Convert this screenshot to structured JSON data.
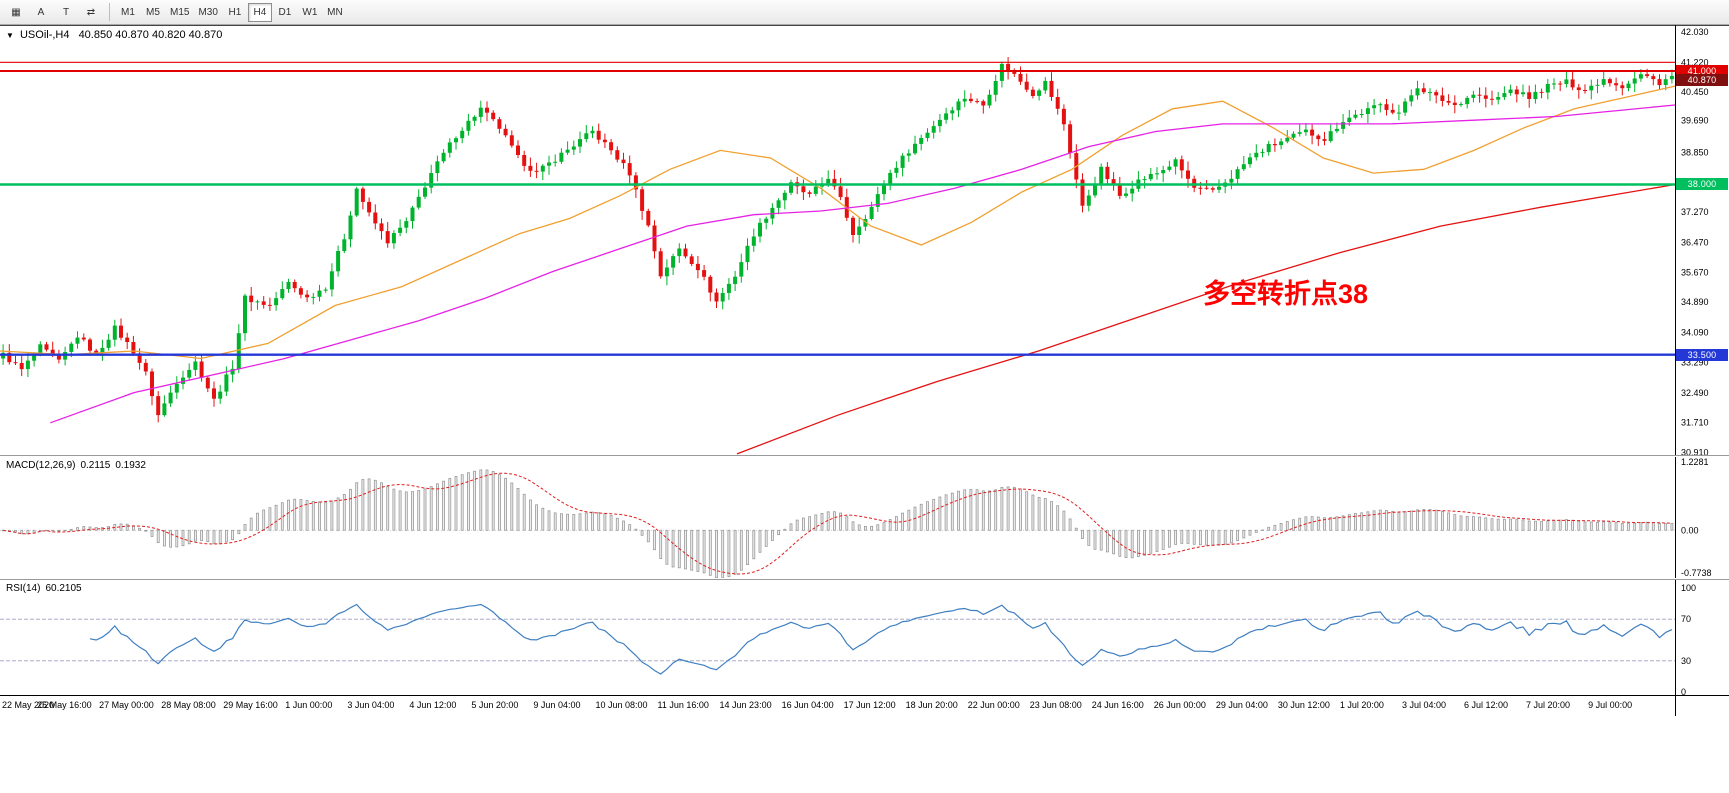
{
  "toolbar": {
    "tools": [
      {
        "name": "chart-type",
        "glyph": "▦"
      },
      {
        "name": "annotate-letter",
        "glyph": "A"
      },
      {
        "name": "text-tool",
        "glyph": "T"
      },
      {
        "name": "auto-shift",
        "glyph": "⇄"
      }
    ],
    "timeframes": [
      "M1",
      "M5",
      "M15",
      "M30",
      "H1",
      "H4",
      "D1",
      "W1",
      "MN"
    ],
    "active_timeframe": "H4"
  },
  "main_chart": {
    "dropdown_glyph": "▼",
    "symbol_label": "USOil-,H4",
    "ohlc_label": "40.850 40.870 40.820 40.870",
    "annotation": {
      "text": "多空转折点38",
      "color": "#ff0000"
    },
    "price_axis": {
      "labels": [
        "42.030",
        "41.220",
        "40.450",
        "39.690",
        "38.850",
        "38.080",
        "37.270",
        "36.470",
        "35.670",
        "34.890",
        "34.090",
        "33.290",
        "32.490",
        "31.710",
        "30.910"
      ],
      "max_price": 42.215,
      "min_price": 30.85
    },
    "hlines": [
      {
        "price": 41.23,
        "color": "#e00000",
        "width": 1.2
      },
      {
        "price": 41.0,
        "color": "#e00000",
        "width": 2,
        "tag": "41.000"
      },
      {
        "price": 38.0,
        "color": "#00bf5f",
        "width": 2.4,
        "tag": "38.000"
      },
      {
        "price": 33.5,
        "color": "#2438d8",
        "width": 2.4,
        "tag": "33.500"
      }
    ],
    "bid": {
      "price": 40.87,
      "tag": "40.870",
      "tag_bg": "#801010"
    }
  },
  "macd_panel": {
    "label": "MACD(12,26,9)",
    "values": [
      "0.2115",
      "0.1932"
    ],
    "axis_labels": [
      {
        "text": "1.2281",
        "value": 1.2281
      },
      {
        "text": "0.00",
        "value": 0
      },
      {
        "text": "-0.7738",
        "value": -0.7738
      }
    ],
    "range": {
      "max": 1.32,
      "min": -0.86
    },
    "hist_color": "#9a9a9a",
    "signal_color": "#e02020"
  },
  "rsi_panel": {
    "label": "RSI(14)",
    "value": "60.2105",
    "axis_labels": [
      {
        "text": "100",
        "value": 100
      },
      {
        "text": "70",
        "value": 70
      },
      {
        "text": "30",
        "value": 30
      },
      {
        "text": "0",
        "value": 0
      }
    ],
    "levels": [
      70,
      30
    ],
    "line_color": "#3f7fc1"
  },
  "chart_data": {
    "type": "candlestick",
    "symbol": "USOil",
    "timeframe": "H4",
    "ohlc_current": {
      "open": 40.85,
      "high": 40.87,
      "low": 40.82,
      "close": 40.87
    },
    "up_color": "#00b32c",
    "down_color": "#e41111",
    "x_labels": [
      "22 May 2020",
      "25 May 16:00",
      "27 May 00:00",
      "28 May 08:00",
      "29 May 16:00",
      "1 Jun 00:00",
      "3 Jun 04:00",
      "4 Jun 12:00",
      "5 Jun 20:00",
      "9 Jun 04:00",
      "10 Jun 08:00",
      "11 Jun 16:00",
      "14 Jun 23:00",
      "16 Jun 04:00",
      "17 Jun 12:00",
      "18 Jun 20:00",
      "22 Jun 00:00",
      "23 Jun 08:00",
      "24 Jun 16:00",
      "26 Jun 00:00",
      "29 Jun 04:00",
      "30 Jun 12:00",
      "1 Jul 20:00",
      "3 Jul 04:00",
      "6 Jul 12:00",
      "7 Jul 20:00",
      "9 Jul 00:00"
    ],
    "candles": {
      "count": 270,
      "noise": 0.16,
      "close_anchors": [
        [
          0,
          33.5
        ],
        [
          3,
          33.1
        ],
        [
          6,
          33.7
        ],
        [
          9,
          33.3
        ],
        [
          12,
          34.0
        ],
        [
          15,
          33.5
        ],
        [
          18,
          34.2
        ],
        [
          21,
          33.6
        ],
        [
          23,
          33.0
        ],
        [
          25,
          31.9
        ],
        [
          28,
          32.8
        ],
        [
          31,
          33.3
        ],
        [
          34,
          32.3
        ],
        [
          37,
          33.2
        ],
        [
          39,
          35.0
        ],
        [
          43,
          34.8
        ],
        [
          46,
          35.4
        ],
        [
          49,
          35.0
        ],
        [
          52,
          35.3
        ],
        [
          55,
          36.6
        ],
        [
          57,
          37.9
        ],
        [
          59,
          37.2
        ],
        [
          62,
          36.5
        ],
        [
          65,
          37.0
        ],
        [
          69,
          38.3
        ],
        [
          73,
          39.3
        ],
        [
          77,
          40.0
        ],
        [
          80,
          39.5
        ],
        [
          83,
          38.7
        ],
        [
          86,
          38.3
        ],
        [
          90,
          38.8
        ],
        [
          95,
          39.4
        ],
        [
          98,
          38.9
        ],
        [
          101,
          38.3
        ],
        [
          104,
          36.9
        ],
        [
          106,
          35.6
        ],
        [
          109,
          36.3
        ],
        [
          112,
          35.8
        ],
        [
          115,
          34.9
        ],
        [
          118,
          35.6
        ],
        [
          121,
          36.7
        ],
        [
          124,
          37.4
        ],
        [
          127,
          38.0
        ],
        [
          130,
          37.7
        ],
        [
          133,
          38.2
        ],
        [
          135,
          37.6
        ],
        [
          137,
          36.7
        ],
        [
          140,
          37.4
        ],
        [
          143,
          38.3
        ],
        [
          146,
          38.9
        ],
        [
          149,
          39.4
        ],
        [
          152,
          39.9
        ],
        [
          155,
          40.3
        ],
        [
          158,
          40.1
        ],
        [
          161,
          41.15
        ],
        [
          163,
          40.9
        ],
        [
          166,
          40.4
        ],
        [
          168,
          40.7
        ],
        [
          171,
          39.6
        ],
        [
          174,
          37.4
        ],
        [
          177,
          38.4
        ],
        [
          180,
          37.7
        ],
        [
          183,
          38.1
        ],
        [
          186,
          38.3
        ],
        [
          189,
          38.6
        ],
        [
          192,
          37.9
        ],
        [
          195,
          37.8
        ],
        [
          198,
          38.2
        ],
        [
          201,
          38.7
        ],
        [
          204,
          39.0
        ],
        [
          207,
          39.2
        ],
        [
          210,
          39.4
        ],
        [
          213,
          39.2
        ],
        [
          216,
          39.7
        ],
        [
          219,
          39.9
        ],
        [
          222,
          40.1
        ],
        [
          225,
          39.9
        ],
        [
          228,
          40.6
        ],
        [
          231,
          40.3
        ],
        [
          234,
          40.1
        ],
        [
          237,
          40.4
        ],
        [
          240,
          40.2
        ],
        [
          243,
          40.5
        ],
        [
          246,
          40.3
        ],
        [
          249,
          40.6
        ],
        [
          252,
          40.7
        ],
        [
          255,
          40.5
        ],
        [
          258,
          40.8
        ],
        [
          261,
          40.6
        ],
        [
          264,
          40.9
        ],
        [
          267,
          40.7
        ],
        [
          269,
          40.87
        ]
      ]
    },
    "moving_averages": [
      {
        "name": "fast-ma",
        "color": "#f0a030",
        "points": [
          [
            0,
            33.6
          ],
          [
            0.04,
            33.5
          ],
          [
            0.08,
            33.6
          ],
          [
            0.12,
            33.4
          ],
          [
            0.16,
            33.8
          ],
          [
            0.2,
            34.8
          ],
          [
            0.24,
            35.3
          ],
          [
            0.28,
            36.1
          ],
          [
            0.31,
            36.7
          ],
          [
            0.34,
            37.1
          ],
          [
            0.37,
            37.7
          ],
          [
            0.4,
            38.4
          ],
          [
            0.43,
            38.9
          ],
          [
            0.46,
            38.7
          ],
          [
            0.49,
            37.9
          ],
          [
            0.52,
            36.9
          ],
          [
            0.55,
            36.4
          ],
          [
            0.58,
            37.0
          ],
          [
            0.61,
            37.8
          ],
          [
            0.64,
            38.4
          ],
          [
            0.67,
            39.3
          ],
          [
            0.7,
            40.0
          ],
          [
            0.73,
            40.2
          ],
          [
            0.76,
            39.5
          ],
          [
            0.79,
            38.7
          ],
          [
            0.82,
            38.3
          ],
          [
            0.85,
            38.4
          ],
          [
            0.88,
            38.9
          ],
          [
            0.91,
            39.5
          ],
          [
            0.94,
            40.0
          ],
          [
            0.97,
            40.3
          ],
          [
            1,
            40.6
          ]
        ]
      },
      {
        "name": "medium-ma",
        "color": "#e522e5",
        "points": [
          [
            0.03,
            31.7
          ],
          [
            0.08,
            32.5
          ],
          [
            0.13,
            33.0
          ],
          [
            0.17,
            33.4
          ],
          [
            0.21,
            33.9
          ],
          [
            0.25,
            34.4
          ],
          [
            0.29,
            35.0
          ],
          [
            0.33,
            35.7
          ],
          [
            0.37,
            36.3
          ],
          [
            0.41,
            36.9
          ],
          [
            0.45,
            37.2
          ],
          [
            0.49,
            37.3
          ],
          [
            0.53,
            37.5
          ],
          [
            0.57,
            37.9
          ],
          [
            0.61,
            38.4
          ],
          [
            0.65,
            39.0
          ],
          [
            0.69,
            39.4
          ],
          [
            0.73,
            39.6
          ],
          [
            0.78,
            39.6
          ],
          [
            0.83,
            39.6
          ],
          [
            0.88,
            39.7
          ],
          [
            0.93,
            39.8
          ],
          [
            1,
            40.1
          ]
        ]
      },
      {
        "name": "slow-ma",
        "color": "#e51212",
        "points": [
          [
            0.44,
            30.88
          ],
          [
            0.5,
            31.9
          ],
          [
            0.56,
            32.8
          ],
          [
            0.62,
            33.6
          ],
          [
            0.68,
            34.5
          ],
          [
            0.74,
            35.4
          ],
          [
            0.8,
            36.2
          ],
          [
            0.86,
            36.9
          ],
          [
            0.92,
            37.4
          ],
          [
            1,
            38.0
          ]
        ]
      }
    ],
    "indicators": {
      "macd": {
        "fast": 12,
        "slow": 26,
        "signal": 9,
        "current": [
          0.2115,
          0.1932
        ]
      },
      "rsi": {
        "period": 14,
        "current": 60.2105
      }
    }
  }
}
